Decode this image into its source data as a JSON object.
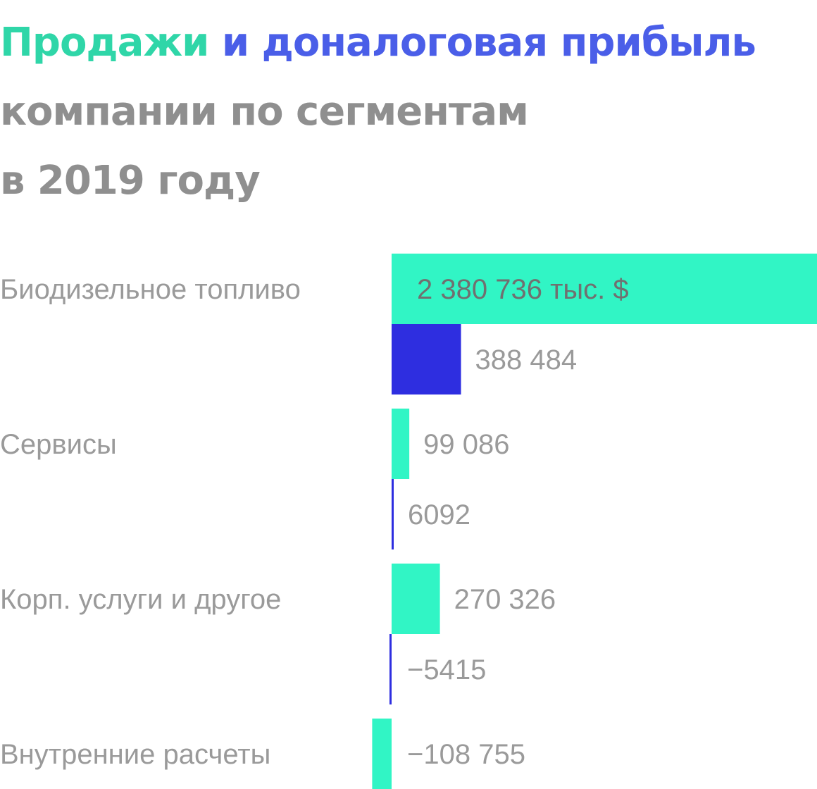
{
  "title": {
    "sales_word": "Продажи",
    "profit_phrase": "и доналоговая прибыль",
    "line2": "компании по сегментам",
    "line3": "в 2019 году"
  },
  "colors": {
    "sales": "#31f5c5",
    "profit": "#2e2ee0",
    "title_sales": "#2fd6a8",
    "title_profit": "#4a5ee8",
    "title_text": "#8f8f8f",
    "labels": "#9a9a9a"
  },
  "chart_data": {
    "type": "bar",
    "orientation": "horizontal",
    "title": "Продажи и доналоговая прибыль компании по сегментам в 2019 году",
    "xlabel": "",
    "ylabel": "",
    "grid": false,
    "legend": "none",
    "categories": [
      "Биодизельное топливо",
      "Сервисы",
      "Корп. услуги и другое",
      "Внутренние расчеты"
    ],
    "series": [
      {
        "name": "Продажи",
        "values": [
          2380736,
          99086,
          270326,
          -108755
        ],
        "labels": [
          "2 380 736 тыс. $",
          "99 086",
          "270 326",
          "−108 755"
        ]
      },
      {
        "name": "доналоговая прибыль",
        "values": [
          388484,
          6092,
          -5415,
          null
        ],
        "labels": [
          "388 484",
          "6092",
          "−5415",
          null
        ]
      }
    ]
  }
}
